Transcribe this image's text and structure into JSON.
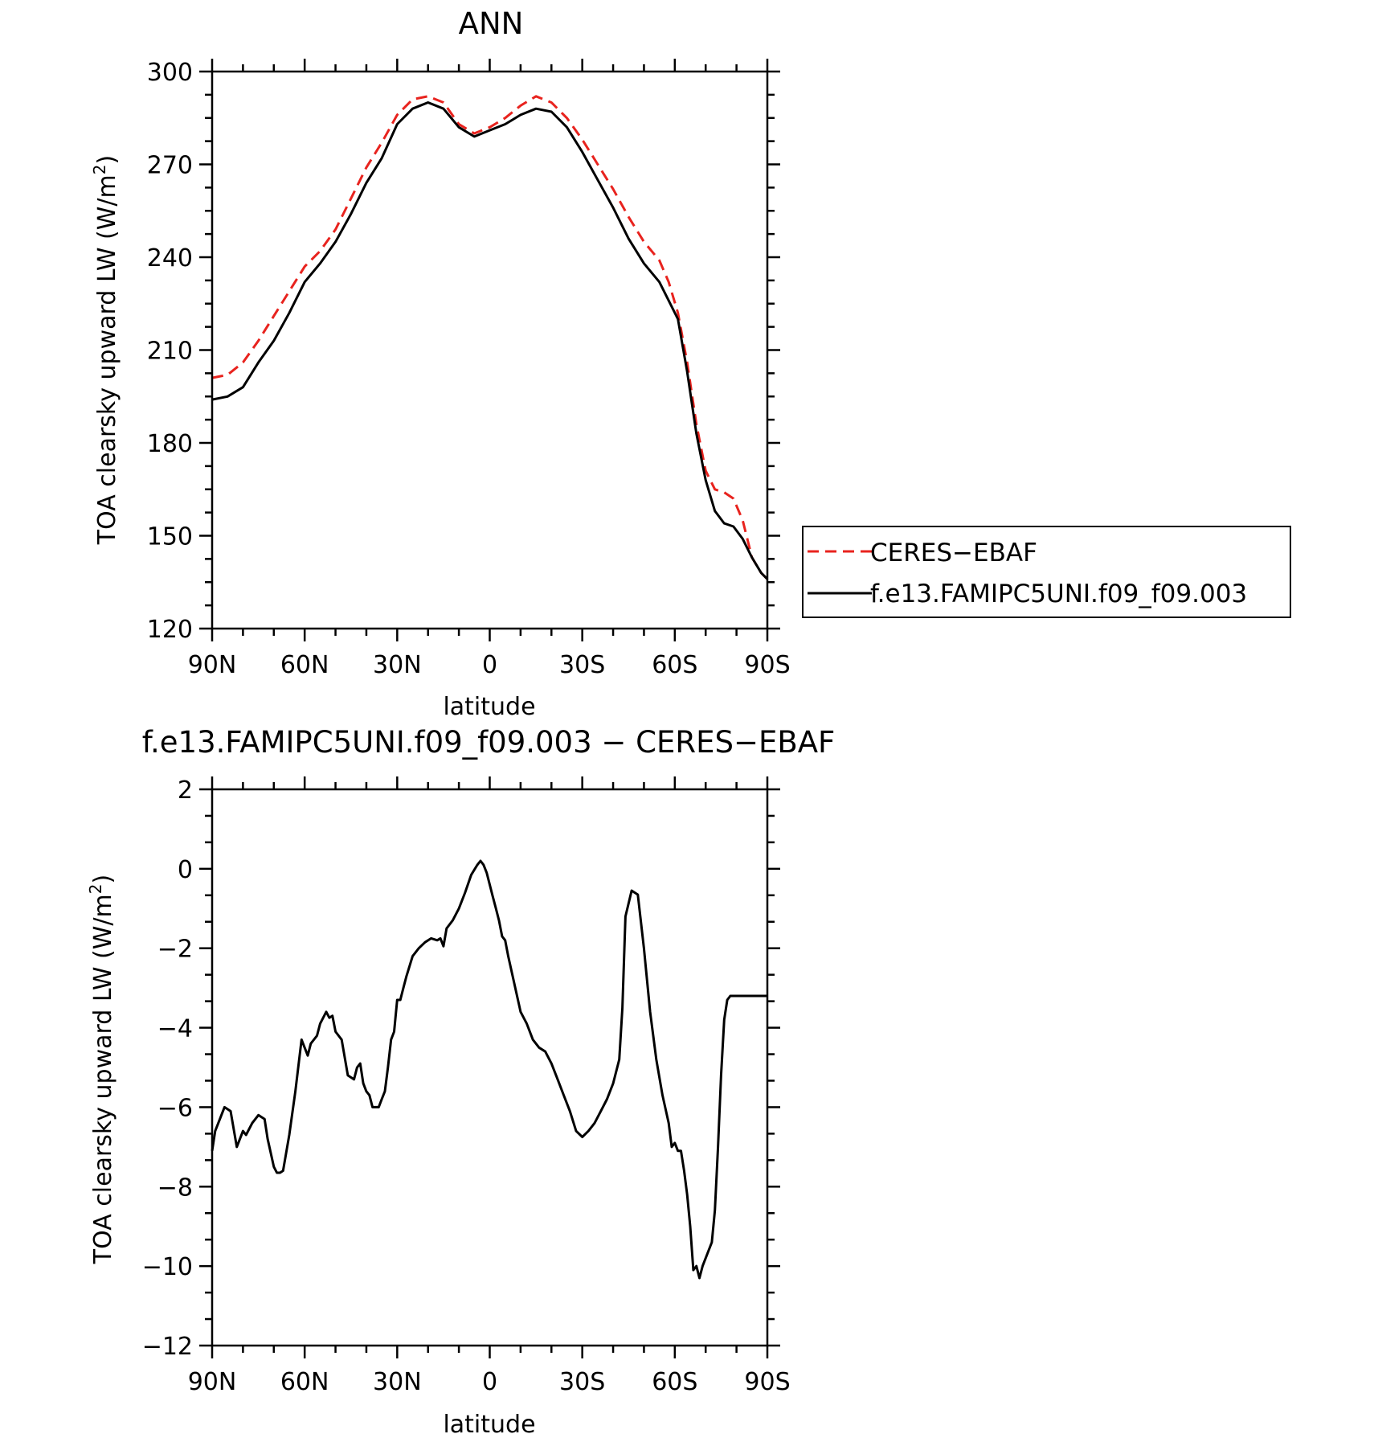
{
  "chart_data": [
    {
      "type": "line",
      "title": "ANN",
      "xlabel": "latitude",
      "ylabel": "TOA clearsky upward LW (W/m²)",
      "ylabel_main": "TOA clearsky upward LW (W/m",
      "ylabel_sup": "2",
      "ylabel_end": ")",
      "ylim": [
        120,
        300
      ],
      "yticks": [
        120,
        150,
        180,
        210,
        240,
        270,
        300
      ],
      "ytick_labels": [
        "120",
        "150",
        "180",
        "210",
        "240",
        "270",
        "300"
      ],
      "xlim": [
        90,
        -90
      ],
      "xticks": [
        90,
        60,
        30,
        0,
        -30,
        -60,
        -90
      ],
      "xtick_labels": [
        "90N",
        "60N",
        "30N",
        "0",
        "30S",
        "60S",
        "90S"
      ],
      "legend_position": "right",
      "series": [
        {
          "name": "CERES−EBAF",
          "color": "#e8231e",
          "dash": "dashed",
          "x": [
            90,
            85,
            80,
            75,
            70,
            65,
            60,
            55,
            50,
            45,
            40,
            35,
            30,
            25,
            20,
            15,
            10,
            5,
            0,
            -5,
            -10,
            -15,
            -20,
            -25,
            -30,
            -35,
            -40,
            -45,
            -50,
            -55,
            -58,
            -61,
            -64,
            -67,
            -70,
            -73,
            -76,
            -79,
            -82,
            -85,
            -88,
            -90
          ],
          "y": [
            201,
            202,
            206,
            213,
            221,
            229,
            237,
            242,
            249,
            259,
            269,
            277,
            286,
            291,
            292,
            290,
            283,
            280,
            282,
            285,
            289,
            292,
            290,
            285,
            278,
            270,
            262,
            253,
            245,
            239,
            232,
            222,
            206,
            186,
            171,
            165,
            164,
            162,
            155,
            143,
            138,
            136
          ]
        },
        {
          "name": "f.e13.FAMIPC5UNI.f09_f09.003",
          "color": "#000000",
          "dash": "solid",
          "x": [
            90,
            85,
            80,
            75,
            70,
            65,
            60,
            55,
            50,
            45,
            40,
            35,
            30,
            25,
            20,
            15,
            10,
            5,
            0,
            -5,
            -10,
            -15,
            -20,
            -25,
            -30,
            -35,
            -40,
            -45,
            -50,
            -55,
            -58,
            -61,
            -64,
            -67,
            -70,
            -73,
            -76,
            -79,
            -82,
            -85,
            -88,
            -90
          ],
          "y": [
            194,
            195,
            198,
            206,
            213,
            222,
            232,
            238,
            245,
            254,
            264,
            272,
            283,
            288,
            290,
            288,
            282,
            279,
            281,
            283,
            286,
            288,
            287,
            282,
            274,
            265,
            256,
            246,
            238,
            232,
            226,
            220,
            203,
            183,
            168,
            158,
            154,
            153,
            149,
            143,
            138,
            136
          ]
        }
      ]
    },
    {
      "type": "line",
      "title": "f.e13.FAMIPC5UNI.f09_f09.003 − CERES−EBAF",
      "xlabel": "latitude",
      "ylabel": "TOA clearsky upward LW (W/m²)",
      "ylabel_main": "TOA clearsky upward LW (W/m",
      "ylabel_sup": "2",
      "ylabel_end": ")",
      "ylim": [
        -12,
        2
      ],
      "yticks": [
        -12,
        -10,
        -8,
        -6,
        -4,
        -2,
        0,
        2
      ],
      "ytick_labels": [
        "−12",
        "−10",
        "−8",
        "−6",
        "−4",
        "−2",
        "0",
        "2"
      ],
      "xlim": [
        90,
        -90
      ],
      "xticks": [
        90,
        60,
        30,
        0,
        -30,
        -60,
        -90
      ],
      "xtick_labels": [
        "90N",
        "60N",
        "30N",
        "0",
        "30S",
        "60S",
        "90S"
      ],
      "series": [
        {
          "color": "#000000",
          "x": [
            90,
            89,
            88,
            86,
            84,
            82,
            80,
            79,
            77,
            75,
            73,
            72,
            70,
            69,
            68,
            67,
            65,
            63,
            61,
            59,
            58,
            56,
            55,
            53,
            52,
            51,
            50,
            48,
            46,
            44,
            43,
            42,
            41,
            40,
            39,
            38,
            37,
            36,
            35,
            34,
            33,
            32,
            31,
            30,
            29,
            28,
            27,
            25,
            23,
            21,
            19,
            17,
            16,
            15,
            14,
            12,
            10,
            8,
            6,
            4,
            3,
            2,
            1,
            0,
            -1,
            -2,
            -3,
            -4,
            -5,
            -6,
            -8,
            -10,
            -12,
            -14,
            -16,
            -18,
            -20,
            -22,
            -24,
            -26,
            -28,
            -30,
            -32,
            -34,
            -36,
            -38,
            -40,
            -42,
            -43,
            -44,
            -46,
            -48,
            -50,
            -52,
            -54,
            -56,
            -58,
            -59,
            -60,
            -61,
            -62,
            -63,
            -64,
            -65,
            -66,
            -67,
            -68,
            -69,
            -70,
            -72,
            -73,
            -74,
            -75,
            -76,
            -77,
            -78,
            -79,
            -80,
            -81,
            -82,
            -83,
            -84,
            -85,
            -86,
            -87,
            -88,
            -89,
            -90
          ],
          "y": [
            -7.1,
            -6.6,
            -6.4,
            -6.0,
            -6.1,
            -7.0,
            -6.6,
            -6.7,
            -6.4,
            -6.2,
            -6.3,
            -6.8,
            -7.5,
            -7.65,
            -7.65,
            -7.6,
            -6.7,
            -5.6,
            -4.3,
            -4.7,
            -4.4,
            -4.2,
            -3.9,
            -3.6,
            -3.75,
            -3.7,
            -4.1,
            -4.3,
            -5.2,
            -5.3,
            -5.0,
            -4.9,
            -5.4,
            -5.6,
            -5.7,
            -6.0,
            -6.0,
            -6.0,
            -5.8,
            -5.6,
            -5.0,
            -4.3,
            -4.1,
            -3.3,
            -3.3,
            -3.0,
            -2.7,
            -2.2,
            -2.0,
            -1.85,
            -1.75,
            -1.8,
            -1.75,
            -1.95,
            -1.5,
            -1.3,
            -1.0,
            -0.6,
            -0.15,
            0.1,
            0.2,
            0.1,
            -0.1,
            -0.4,
            -0.7,
            -1.0,
            -1.3,
            -1.7,
            -1.8,
            -2.2,
            -2.9,
            -3.6,
            -3.9,
            -4.3,
            -4.5,
            -4.6,
            -4.9,
            -5.3,
            -5.7,
            -6.1,
            -6.6,
            -6.75,
            -6.6,
            -6.4,
            -6.1,
            -5.8,
            -5.4,
            -4.8,
            -3.5,
            -1.2,
            -0.55,
            -0.65,
            -2.0,
            -3.6,
            -4.8,
            -5.7,
            -6.4,
            -7.0,
            -6.9,
            -7.1,
            -7.1,
            -7.6,
            -8.2,
            -9.0,
            -10.1,
            -10.0,
            -10.3,
            -10.0,
            -9.8,
            -9.4,
            -8.6,
            -7.0,
            -5.2,
            -3.8,
            -3.3,
            -3.2,
            -3.2,
            -3.2,
            -3.2,
            -3.2,
            -3.2,
            -3.2,
            -3.2,
            -3.2,
            -3.2,
            -3.2,
            -3.2,
            -3.2
          ]
        }
      ]
    }
  ]
}
